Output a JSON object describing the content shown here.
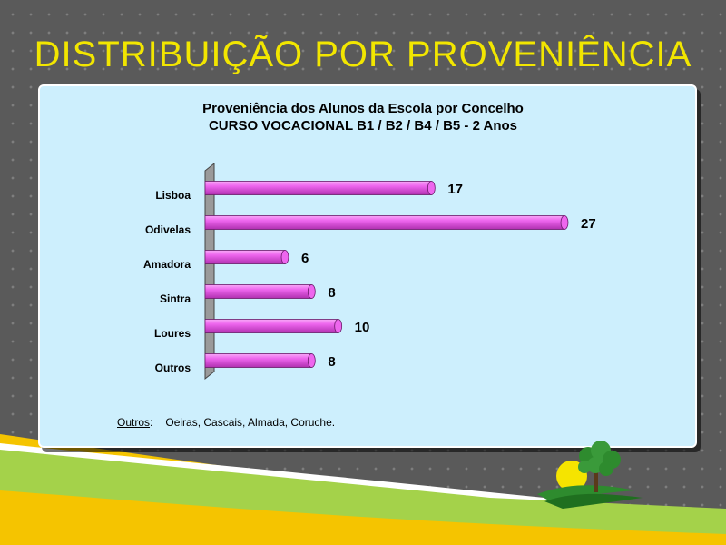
{
  "slide": {
    "title": "DISTRIBUIÇÃO POR PROVENIÊNCIA"
  },
  "colors": {
    "title": "#f2e600",
    "panel": "#cdeffd",
    "bar": "#ee66ee",
    "bar_dark": "#b030b0",
    "ground_green": "#a4d24a",
    "ground_yellow": "#f5c400"
  },
  "chart_data": {
    "type": "bar",
    "orientation": "horizontal",
    "title": "Proveniência dos Alunos da Escola por Concelho",
    "subtitle": "CURSO VOCACIONAL B1 / B2 / B4 / B5 - 2 Anos",
    "categories": [
      "Lisboa",
      "Odivelas",
      "Amadora",
      "Sintra",
      "Loures",
      "Outros"
    ],
    "values": [
      17,
      27,
      6,
      8,
      10,
      8
    ],
    "xlim": [
      0,
      27
    ],
    "grid": false,
    "legend": false
  },
  "footnote": {
    "label": "Outros",
    "colon": ":",
    "text": "Oeiras, Cascais, Almada, Coruche."
  },
  "logo": {
    "icon": "tree-sun-logo"
  }
}
